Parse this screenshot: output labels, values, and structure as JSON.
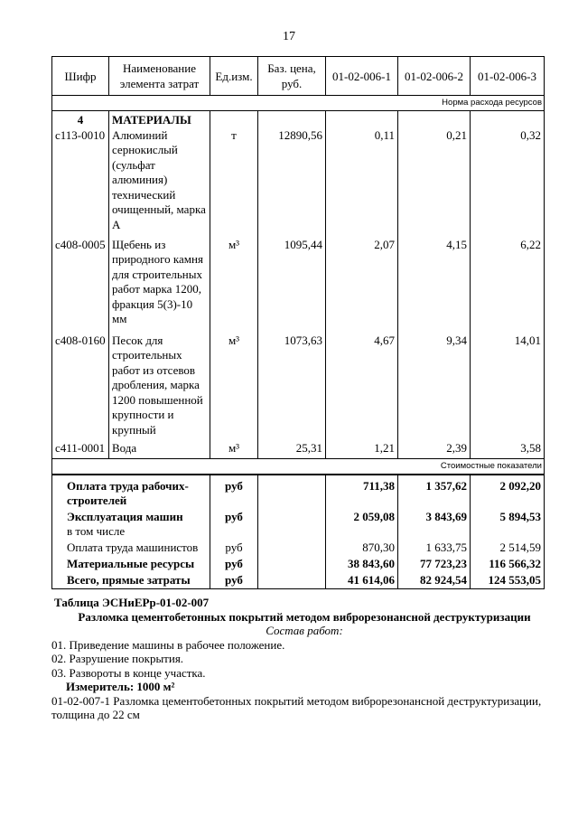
{
  "header": {
    "page_number": "17"
  },
  "table": {
    "columns": [
      "Шифр",
      "Наименование элемента затрат",
      "Ед.изм.",
      "Баз. цена, руб.",
      "01-02-006-1",
      "01-02-006-2",
      "01-02-006-3"
    ],
    "norm_label": "Норма расхода ресурсов",
    "section": {
      "number": "4",
      "title": "МАТЕРИАЛЫ"
    },
    "rows": [
      [
        "с113-0010",
        "Алюминий сернокислый (сульфат алюминия) технический очищенный, марка А",
        "т",
        "12890,56",
        "0,11",
        "0,21",
        "0,32"
      ],
      [
        "с408-0005",
        "Щебень из природного камня для строительных работ марка 1200, фракция 5(3)-10 мм",
        "м³",
        "1095,44",
        "2,07",
        "4,15",
        "6,22"
      ],
      [
        "с408-0160",
        "Песок для строительных работ из отсевов дробления, марка 1200 повышенной крупности и крупный",
        "м³",
        "1073,63",
        "4,67",
        "9,34",
        "14,01"
      ],
      [
        "с411-0001",
        "Вода",
        "м³",
        "25,31",
        "1,21",
        "2,39",
        "3,58"
      ]
    ],
    "cost_label": "Стоимостные показатели",
    "summary": [
      {
        "name": "Оплата труда рабочих-строителей",
        "unit": "руб",
        "values": [
          "711,38",
          "1 357,62",
          "2 092,20"
        ]
      },
      {
        "name": "Эксплуатация машин",
        "note": "в том числе",
        "unit": "руб",
        "values": [
          "2 059,08",
          "3 843,69",
          "5 894,53"
        ]
      },
      {
        "name": "Оплата труда машинистов",
        "unit": "руб",
        "values": [
          "870,30",
          "1 633,75",
          "2 514,59"
        ]
      },
      {
        "name": "Материальные ресурсы",
        "unit": "руб",
        "values": [
          "38 843,60",
          "77 723,23",
          "116 566,32"
        ]
      },
      {
        "name": "Всего, прямые затраты",
        "unit": "руб",
        "values": [
          "41 614,06",
          "82 924,54",
          "124 553,05"
        ]
      }
    ]
  },
  "next_table": {
    "title": "Таблица  ЭСНиЕРр-01-02-007",
    "subtitle": "Разломка цементобетонных покрытий методом виброрезонансной деструктуризации",
    "composition_title": "Состав работ:",
    "steps": [
      "01. Приведение машины в рабочее положение.",
      "02. Разрушение покрытия.",
      "03. Развороты в конце участка."
    ],
    "meter": "Измеритель: 1000 м²",
    "item": "01-02-007-1 Разломка цементобетонных покрытий методом виброрезонансной деструктуризации, толщина до 22 см"
  }
}
